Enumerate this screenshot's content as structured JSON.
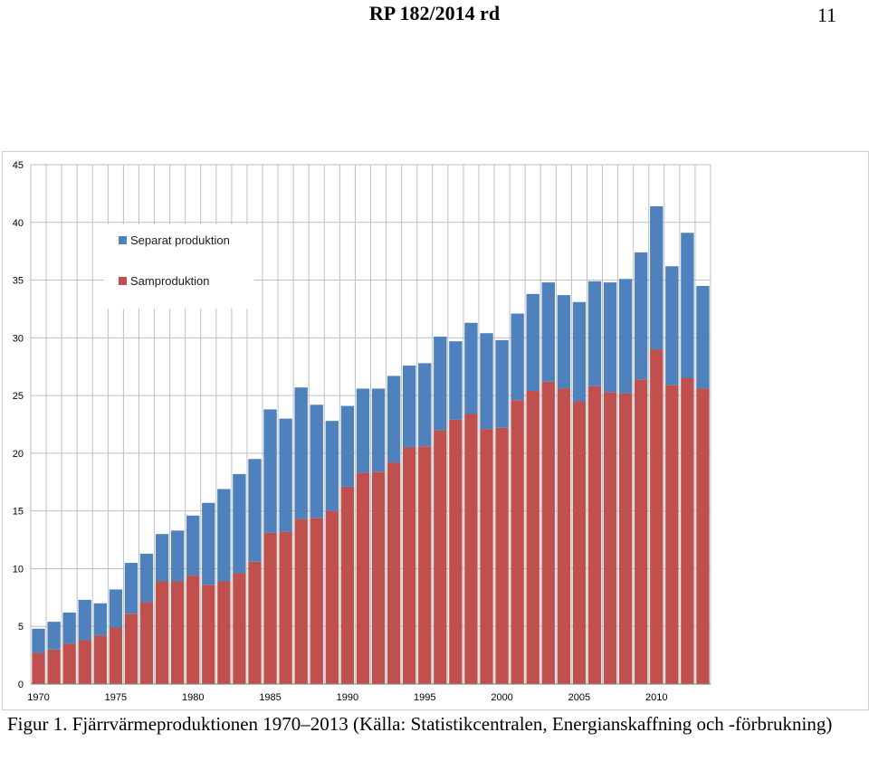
{
  "header": {
    "title": "RP 182/2014 rd",
    "page_number": "11"
  },
  "caption": "Figur 1. Fjärrvärmeproduktionen 1970–2013 (Källa: Statistikcentralen, Energianskaffning och -förbrukning)",
  "chart_data": {
    "type": "bar",
    "stacked": true,
    "x": [
      1970,
      1971,
      1972,
      1973,
      1974,
      1975,
      1976,
      1977,
      1978,
      1979,
      1980,
      1981,
      1982,
      1983,
      1984,
      1985,
      1986,
      1987,
      1988,
      1989,
      1990,
      1991,
      1992,
      1993,
      1994,
      1995,
      1996,
      1997,
      1998,
      1999,
      2000,
      2001,
      2002,
      2003,
      2004,
      2005,
      2006,
      2007,
      2008,
      2009,
      2010,
      2011,
      2012,
      2013
    ],
    "x_tick_labels": [
      "1970",
      "1975",
      "1980",
      "1985",
      "1990",
      "1995",
      "2000",
      "2005",
      "2010"
    ],
    "y_tick_labels": [
      "0",
      "5",
      "10",
      "15",
      "20",
      "25",
      "30",
      "35",
      "40",
      "45"
    ],
    "ylim": [
      0,
      45
    ],
    "grid": true,
    "legend_position": "top-left",
    "series": [
      {
        "name": "Samproduktion",
        "color": "#c0504d",
        "values": [
          2.7,
          3.0,
          3.5,
          3.8,
          4.2,
          4.9,
          6.1,
          7.1,
          8.9,
          8.9,
          9.4,
          8.6,
          8.9,
          9.6,
          10.6,
          13.1,
          13.2,
          14.3,
          14.4,
          15.0,
          17.1,
          18.3,
          18.4,
          19.2,
          20.5,
          20.6,
          22.0,
          22.9,
          23.4,
          22.1,
          22.2,
          24.6,
          25.4,
          26.2,
          25.6,
          24.5,
          25.8,
          25.3,
          25.2,
          26.4,
          29.0,
          25.9,
          26.5,
          25.6
        ]
      },
      {
        "name": "Separat produktion",
        "color": "#4f81bd",
        "values": [
          2.1,
          2.4,
          2.7,
          3.5,
          2.8,
          3.3,
          4.4,
          4.2,
          4.1,
          4.4,
          5.2,
          7.1,
          8.0,
          8.6,
          8.9,
          10.7,
          9.8,
          11.4,
          9.8,
          7.8,
          7.0,
          7.3,
          7.2,
          7.5,
          7.1,
          7.2,
          8.1,
          6.8,
          7.9,
          8.3,
          7.6,
          7.5,
          8.4,
          8.6,
          8.1,
          8.6,
          9.1,
          9.5,
          9.9,
          11.0,
          12.4,
          10.3,
          12.6,
          8.9
        ]
      }
    ]
  }
}
